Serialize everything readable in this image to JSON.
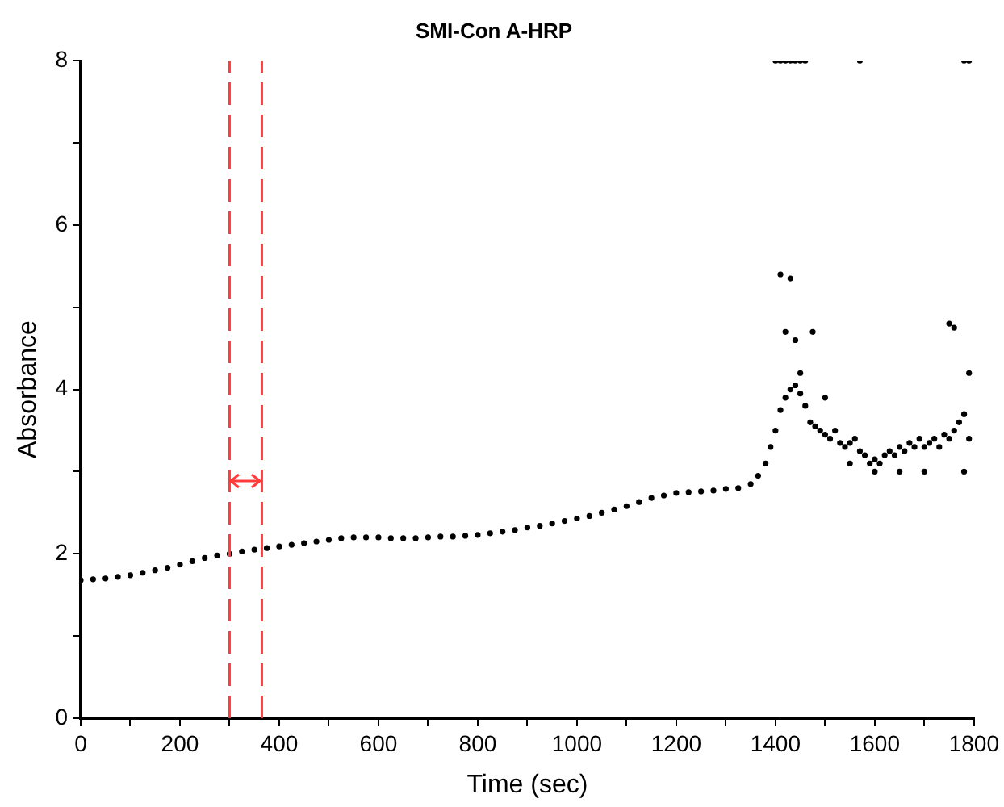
{
  "chart_data": {
    "type": "scatter",
    "title": "SMI-Con A-HRP",
    "xlabel": "Time (sec)",
    "ylabel": "Absorbance",
    "xlim": [
      0,
      1800
    ],
    "ylim": [
      0,
      8
    ],
    "xticks": [
      0,
      {
        "value": 100,
        "label": null
      },
      200,
      {
        "value": 300,
        "label": null
      },
      400,
      {
        "value": 500,
        "label": null
      },
      600,
      {
        "value": 700,
        "label": null
      },
      800,
      {
        "value": 900,
        "label": null
      },
      1000,
      {
        "value": 1100,
        "label": null
      },
      1200,
      {
        "value": 1300,
        "label": null
      },
      1400,
      {
        "value": 1500,
        "label": null
      },
      1600,
      {
        "value": 1700,
        "label": null
      },
      1800
    ],
    "yticks": [
      0,
      {
        "value": 1,
        "label": null
      },
      2,
      {
        "value": 3,
        "label": null
      },
      4,
      {
        "value": 5,
        "label": null
      },
      6,
      {
        "value": 7,
        "label": null
      },
      8
    ],
    "grid": false,
    "legend": false,
    "marker": "circle",
    "ref_lines": [
      {
        "axis": "x",
        "value": 300,
        "color": "#ff3b3b",
        "line_style": "dashed"
      },
      {
        "axis": "x",
        "value": 365,
        "color": "#ff3b3b",
        "line_style": "dashed"
      }
    ],
    "series": [
      {
        "color": "#000000",
        "x": [
          0,
          25,
          50,
          75,
          100,
          125,
          150,
          175,
          200,
          225,
          250,
          275,
          300,
          325,
          350,
          375,
          400,
          425,
          450,
          475,
          500,
          525,
          550,
          575,
          600,
          625,
          650,
          675,
          700,
          725,
          750,
          775,
          800,
          825,
          850,
          875,
          900,
          925,
          950,
          975,
          1000,
          1025,
          1050,
          1075,
          1100,
          1125,
          1150,
          1175,
          1200,
          1225,
          1250,
          1275,
          1300,
          1325,
          1350,
          1365,
          1380,
          1390,
          1400,
          1410,
          1420,
          1430,
          1440,
          1450,
          1460,
          1470,
          1480,
          1490,
          1500,
          1510,
          1520,
          1530,
          1540,
          1550,
          1560,
          1570,
          1580,
          1590,
          1600,
          1610,
          1620,
          1630,
          1640,
          1650,
          1660,
          1670,
          1680,
          1690,
          1700,
          1710,
          1720,
          1730,
          1740,
          1750,
          1760,
          1770,
          1780,
          1790,
          1410,
          1430,
          1420,
          1440,
          1475,
          1750,
          1760,
          1790,
          1450,
          1500,
          1550,
          1600,
          1650,
          1700,
          1780,
          1400,
          1410,
          1420,
          1430,
          1440,
          1450,
          1460,
          1570,
          1780,
          1790
        ],
        "values": [
          1.68,
          1.69,
          1.7,
          1.72,
          1.74,
          1.77,
          1.8,
          1.83,
          1.87,
          1.91,
          1.95,
          1.98,
          2.0,
          2.03,
          2.05,
          2.07,
          2.09,
          2.11,
          2.13,
          2.15,
          2.17,
          2.19,
          2.2,
          2.2,
          2.2,
          2.19,
          2.19,
          2.19,
          2.2,
          2.21,
          2.21,
          2.22,
          2.23,
          2.25,
          2.27,
          2.29,
          2.32,
          2.34,
          2.37,
          2.4,
          2.43,
          2.46,
          2.5,
          2.54,
          2.58,
          2.63,
          2.68,
          2.71,
          2.74,
          2.75,
          2.76,
          2.77,
          2.79,
          2.8,
          2.85,
          2.95,
          3.1,
          3.3,
          3.5,
          3.75,
          3.9,
          4.0,
          4.05,
          3.95,
          3.8,
          3.6,
          3.55,
          3.5,
          3.45,
          3.4,
          3.5,
          3.35,
          3.3,
          3.35,
          3.4,
          3.25,
          3.2,
          3.1,
          3.15,
          3.1,
          3.2,
          3.25,
          3.2,
          3.3,
          3.25,
          3.35,
          3.3,
          3.4,
          3.3,
          3.35,
          3.4,
          3.3,
          3.45,
          3.4,
          3.5,
          3.6,
          3.7,
          3.4,
          5.4,
          5.35,
          4.7,
          4.6,
          4.7,
          4.8,
          4.75,
          4.2,
          4.2,
          3.9,
          3.1,
          3.0,
          3.0,
          3.0,
          3.0,
          8,
          8,
          8,
          8,
          8,
          8,
          8,
          8,
          8,
          8
        ]
      }
    ]
  }
}
